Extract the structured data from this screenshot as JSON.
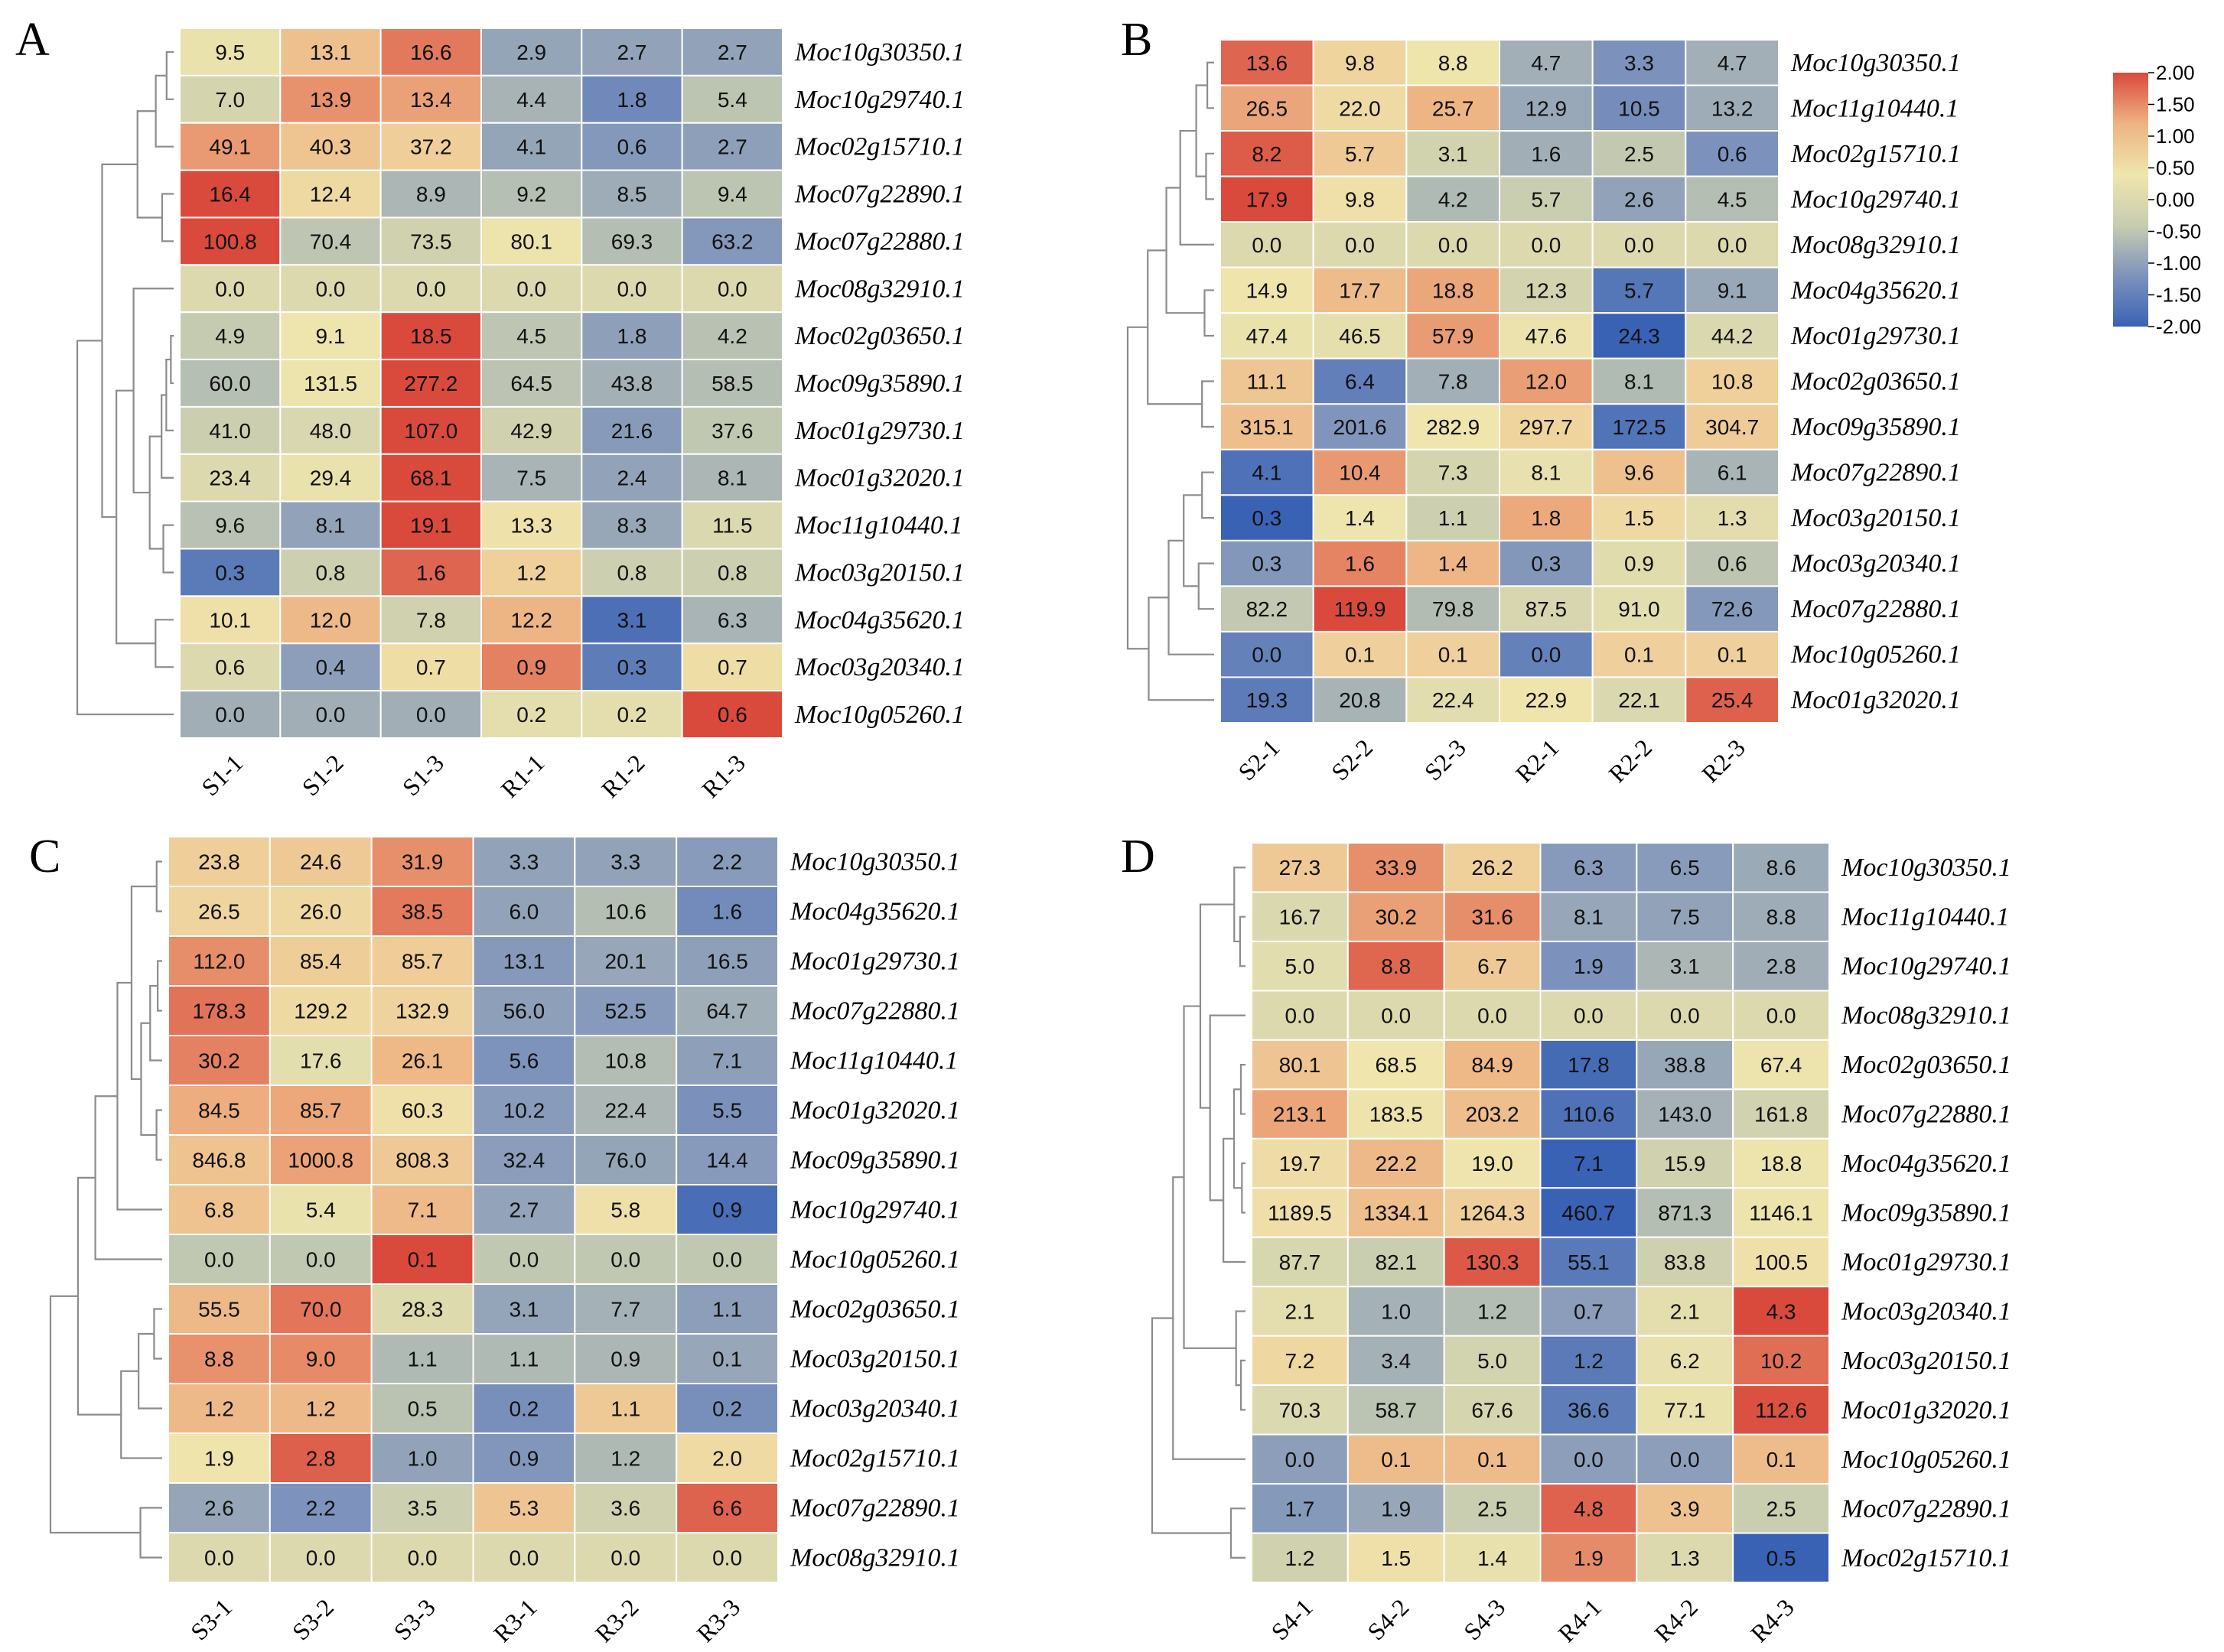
{
  "figure": "Heatmaps of gene expression (panels A-D)",
  "chart_data": [
    {
      "type": "heatmap",
      "panel": "A",
      "columns": [
        "S1-1",
        "S1-2",
        "S1-3",
        "R1-1",
        "R1-2",
        "R1-3"
      ],
      "rows": [
        "Moc10g30350.1",
        "Moc10g29740.1",
        "Moc02g15710.1",
        "Moc07g22890.1",
        "Moc07g22880.1",
        "Moc08g32910.1",
        "Moc02g03650.1",
        "Moc09g35890.1",
        "Moc01g29730.1",
        "Moc01g32020.1",
        "Moc11g10440.1",
        "Moc03g20150.1",
        "Moc04g35620.1",
        "Moc03g20340.1",
        "Moc10g05260.1"
      ],
      "values": [
        [
          "9.5",
          "13.1",
          "16.6",
          "2.9",
          "2.7",
          "2.7"
        ],
        [
          "7.0",
          "13.9",
          "13.4",
          "4.4",
          "1.8",
          "5.4"
        ],
        [
          "49.1",
          "40.3",
          "37.2",
          "4.1",
          "0.6",
          "2.7"
        ],
        [
          "16.4",
          "12.4",
          "8.9",
          "9.2",
          "8.5",
          "9.4"
        ],
        [
          "100.8",
          "70.4",
          "73.5",
          "80.1",
          "69.3",
          "63.2"
        ],
        [
          "0.0",
          "0.0",
          "0.0",
          "0.0",
          "0.0",
          "0.0"
        ],
        [
          "4.9",
          "9.1",
          "18.5",
          "4.5",
          "1.8",
          "4.2"
        ],
        [
          "60.0",
          "131.5",
          "277.2",
          "64.5",
          "43.8",
          "58.5"
        ],
        [
          "41.0",
          "48.0",
          "107.0",
          "42.9",
          "21.6",
          "37.6"
        ],
        [
          "23.4",
          "29.4",
          "68.1",
          "7.5",
          "2.4",
          "8.1"
        ],
        [
          "9.6",
          "8.1",
          "19.1",
          "13.3",
          "8.3",
          "11.5"
        ],
        [
          "0.3",
          "0.8",
          "1.6",
          "1.2",
          "0.8",
          "0.8"
        ],
        [
          "10.1",
          "12.0",
          "7.8",
          "12.2",
          "3.1",
          "6.3"
        ],
        [
          "0.6",
          "0.4",
          "0.7",
          "0.9",
          "0.3",
          "0.7"
        ],
        [
          "0.0",
          "0.0",
          "0.0",
          "0.2",
          "0.2",
          "0.6"
        ]
      ]
    },
    {
      "type": "heatmap",
      "panel": "B",
      "columns": [
        "S2-1",
        "S2-2",
        "S2-3",
        "R2-1",
        "R2-2",
        "R2-3"
      ],
      "rows": [
        "Moc10g30350.1",
        "Moc11g10440.1",
        "Moc02g15710.1",
        "Moc10g29740.1",
        "Moc08g32910.1",
        "Moc04g35620.1",
        "Moc01g29730.1",
        "Moc02g03650.1",
        "Moc09g35890.1",
        "Moc07g22890.1",
        "Moc03g20150.1",
        "Moc03g20340.1",
        "Moc07g22880.1",
        "Moc10g05260.1",
        "Moc01g32020.1"
      ],
      "values": [
        [
          "13.6",
          "9.8",
          "8.8",
          "4.7",
          "3.3",
          "4.7"
        ],
        [
          "26.5",
          "22.0",
          "25.7",
          "12.9",
          "10.5",
          "13.2"
        ],
        [
          "8.2",
          "5.7",
          "3.1",
          "1.6",
          "2.5",
          "0.6"
        ],
        [
          "17.9",
          "9.8",
          "4.2",
          "5.7",
          "2.6",
          "4.5"
        ],
        [
          "0.0",
          "0.0",
          "0.0",
          "0.0",
          "0.0",
          "0.0"
        ],
        [
          "14.9",
          "17.7",
          "18.8",
          "12.3",
          "5.7",
          "9.1"
        ],
        [
          "47.4",
          "46.5",
          "57.9",
          "47.6",
          "24.3",
          "44.2"
        ],
        [
          "11.1",
          "6.4",
          "7.8",
          "12.0",
          "8.1",
          "10.8"
        ],
        [
          "315.1",
          "201.6",
          "282.9",
          "297.7",
          "172.5",
          "304.7"
        ],
        [
          "4.1",
          "10.4",
          "7.3",
          "8.1",
          "9.6",
          "6.1"
        ],
        [
          "0.3",
          "1.4",
          "1.1",
          "1.8",
          "1.5",
          "1.3"
        ],
        [
          "0.3",
          "1.6",
          "1.4",
          "0.3",
          "0.9",
          "0.6"
        ],
        [
          "82.2",
          "119.9",
          "79.8",
          "87.5",
          "91.0",
          "72.6"
        ],
        [
          "0.0",
          "0.1",
          "0.1",
          "0.0",
          "0.1",
          "0.1"
        ],
        [
          "19.3",
          "20.8",
          "22.4",
          "22.9",
          "22.1",
          "25.4"
        ]
      ]
    },
    {
      "type": "heatmap",
      "panel": "C",
      "columns": [
        "S3-1",
        "S3-2",
        "S3-3",
        "R3-1",
        "R3-2",
        "R3-3"
      ],
      "rows": [
        "Moc10g30350.1",
        "Moc04g35620.1",
        "Moc01g29730.1",
        "Moc07g22880.1",
        "Moc11g10440.1",
        "Moc01g32020.1",
        "Moc09g35890.1",
        "Moc10g29740.1",
        "Moc10g05260.1",
        "Moc02g03650.1",
        "Moc03g20150.1",
        "Moc03g20340.1",
        "Moc02g15710.1",
        "Moc07g22890.1",
        "Moc08g32910.1"
      ],
      "values": [
        [
          "23.8",
          "24.6",
          "31.9",
          "3.3",
          "3.3",
          "2.2"
        ],
        [
          "26.5",
          "26.0",
          "38.5",
          "6.0",
          "10.6",
          "1.6"
        ],
        [
          "112.0",
          "85.4",
          "85.7",
          "13.1",
          "20.1",
          "16.5"
        ],
        [
          "178.3",
          "129.2",
          "132.9",
          "56.0",
          "52.5",
          "64.7"
        ],
        [
          "30.2",
          "17.6",
          "26.1",
          "5.6",
          "10.8",
          "7.1"
        ],
        [
          "84.5",
          "85.7",
          "60.3",
          "10.2",
          "22.4",
          "5.5"
        ],
        [
          "846.8",
          "1000.8",
          "808.3",
          "32.4",
          "76.0",
          "14.4"
        ],
        [
          "6.8",
          "5.4",
          "7.1",
          "2.7",
          "5.8",
          "0.9"
        ],
        [
          "0.0",
          "0.0",
          "0.1",
          "0.0",
          "0.0",
          "0.0"
        ],
        [
          "55.5",
          "70.0",
          "28.3",
          "3.1",
          "7.7",
          "1.1"
        ],
        [
          "8.8",
          "9.0",
          "1.1",
          "1.1",
          "0.9",
          "0.1"
        ],
        [
          "1.2",
          "1.2",
          "0.5",
          "0.2",
          "1.1",
          "0.2"
        ],
        [
          "1.9",
          "2.8",
          "1.0",
          "0.9",
          "1.2",
          "2.0"
        ],
        [
          "2.6",
          "2.2",
          "3.5",
          "5.3",
          "3.6",
          "6.6"
        ],
        [
          "0.0",
          "0.0",
          "0.0",
          "0.0",
          "0.0",
          "0.0"
        ]
      ]
    },
    {
      "type": "heatmap",
      "panel": "D",
      "columns": [
        "S4-1",
        "S4-2",
        "S4-3",
        "R4-1",
        "R4-2",
        "R4-3"
      ],
      "rows": [
        "Moc10g30350.1",
        "Moc11g10440.1",
        "Moc10g29740.1",
        "Moc08g32910.1",
        "Moc02g03650.1",
        "Moc07g22880.1",
        "Moc04g35620.1",
        "Moc09g35890.1",
        "Moc01g29730.1",
        "Moc03g20340.1",
        "Moc03g20150.1",
        "Moc01g32020.1",
        "Moc10g05260.1",
        "Moc07g22890.1",
        "Moc02g15710.1"
      ],
      "values": [
        [
          "27.3",
          "33.9",
          "26.2",
          "6.3",
          "6.5",
          "8.6"
        ],
        [
          "16.7",
          "30.2",
          "31.6",
          "8.1",
          "7.5",
          "8.8"
        ],
        [
          "5.0",
          "8.8",
          "6.7",
          "1.9",
          "3.1",
          "2.8"
        ],
        [
          "0.0",
          "0.0",
          "0.0",
          "0.0",
          "0.0",
          "0.0"
        ],
        [
          "80.1",
          "68.5",
          "84.9",
          "17.8",
          "38.8",
          "67.4"
        ],
        [
          "213.1",
          "183.5",
          "203.2",
          "110.6",
          "143.0",
          "161.8"
        ],
        [
          "19.7",
          "22.2",
          "19.0",
          "7.1",
          "15.9",
          "18.8"
        ],
        [
          "1189.5",
          "1334.1",
          "1264.3",
          "460.7",
          "871.3",
          "1146.1"
        ],
        [
          "87.7",
          "82.1",
          "130.3",
          "55.1",
          "83.8",
          "100.5"
        ],
        [
          "2.1",
          "1.0",
          "1.2",
          "0.7",
          "2.1",
          "4.3"
        ],
        [
          "7.2",
          "3.4",
          "5.0",
          "1.2",
          "6.2",
          "10.2"
        ],
        [
          "70.3",
          "58.7",
          "67.6",
          "36.6",
          "77.1",
          "112.6"
        ],
        [
          "0.0",
          "0.1",
          "0.1",
          "0.0",
          "0.0",
          "0.1"
        ],
        [
          "1.7",
          "1.9",
          "2.5",
          "4.8",
          "3.9",
          "2.5"
        ],
        [
          "1.2",
          "1.5",
          "1.4",
          "1.9",
          "1.3",
          "0.5"
        ]
      ]
    }
  ],
  "legend": {
    "ticks": [
      "2.00",
      "1.50",
      "1.00",
      "0.50",
      "0.00",
      "-0.50",
      "-1.00",
      "-1.50",
      "-2.00"
    ],
    "range": [
      -2.0,
      2.0
    ],
    "colors": [
      "#3a62b4",
      "#7e93bc",
      "#c8cdb0",
      "#efe5ad",
      "#eeb383",
      "#d94a3d"
    ]
  }
}
